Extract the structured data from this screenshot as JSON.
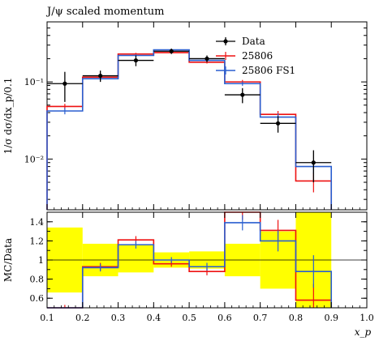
{
  "chart_data": {
    "type": "line",
    "title": "J/ψ scaled momentum",
    "main_panel": {
      "ylabel": "1/σ dσ/dx_p/0.1",
      "yscale": "log",
      "ylim": [
        0.0022,
        0.6
      ],
      "yticks": [
        {
          "value": 0.1,
          "label": "10⁻¹"
        },
        {
          "value": 0.01,
          "label": "10⁻²"
        }
      ]
    },
    "ratio_panel": {
      "ylabel": "MC/Data",
      "ylim": [
        0.5,
        1.5
      ],
      "yticks": [
        0.6,
        0.8,
        1,
        1.2,
        1.4
      ]
    },
    "x": {
      "label": "x_p",
      "lim": [
        0.1,
        1.0
      ],
      "ticks": [
        "0.1",
        "0.2",
        "0.3",
        "0.4",
        "0.5",
        "0.6",
        "0.7",
        "0.8",
        "0.9",
        "1.0"
      ],
      "bin_edges": [
        0.1,
        0.2,
        0.3,
        0.4,
        0.5,
        0.6,
        0.7,
        0.8,
        0.9
      ]
    },
    "series": [
      {
        "name": "Data",
        "color": "#000000",
        "style": "points",
        "x": [
          0.15,
          0.25,
          0.35,
          0.45,
          0.55,
          0.65,
          0.75,
          0.85
        ],
        "y": [
          0.095,
          0.12,
          0.19,
          0.25,
          0.2,
          0.068,
          0.029,
          0.009
        ],
        "yerr": [
          0.04,
          0.02,
          0.03,
          0.02,
          0.02,
          0.015,
          0.007,
          0.004
        ],
        "band_up": [
          1.34,
          1.17,
          1.16,
          1.08,
          1.09,
          1.17,
          1.3,
          1.5
        ],
        "band_down": [
          0.66,
          0.83,
          0.87,
          0.92,
          0.91,
          0.83,
          0.7,
          0.5
        ]
      },
      {
        "name": "25806",
        "color": "#ee1111",
        "style": "hist",
        "values": [
          0.048,
          0.115,
          0.23,
          0.24,
          0.18,
          0.1,
          0.038,
          0.0052
        ],
        "err": [
          0.004,
          0.006,
          0.008,
          0.008,
          0.007,
          0.006,
          0.004,
          0.0015
        ],
        "ratio": [
          0.5,
          0.93,
          1.21,
          0.96,
          0.88,
          1.5,
          1.31,
          0.58
        ],
        "ratio_err": [
          0.03,
          0.04,
          0.04,
          0.03,
          0.04,
          0.08,
          0.11,
          0.17
        ]
      },
      {
        "name": "25806 FS1",
        "color": "#2a5fd0",
        "style": "hist",
        "values": [
          0.042,
          0.11,
          0.22,
          0.26,
          0.19,
          0.095,
          0.035,
          0.008
        ],
        "err": [
          0.004,
          0.006,
          0.008,
          0.008,
          0.007,
          0.006,
          0.004,
          0.0015
        ],
        "ratio": [
          0.44,
          0.92,
          1.16,
          1.0,
          0.93,
          1.39,
          1.2,
          0.88
        ],
        "ratio_err": [
          0.03,
          0.04,
          0.04,
          0.03,
          0.04,
          0.08,
          0.11,
          0.17
        ]
      }
    ],
    "legend": {
      "position": "top-right"
    },
    "reference_line": 1,
    "band_color": "#ffff00"
  }
}
